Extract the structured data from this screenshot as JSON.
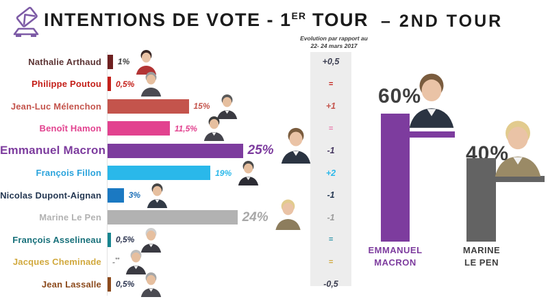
{
  "header": {
    "icon": "ballot-box-icon",
    "accent_color": "#7d5ba6",
    "title_prefix": "INTENTIONS DE VOTE - 1",
    "title_sup": "ER",
    "title_suffix": " TOUR",
    "second_title": "– 2ND  TOUR"
  },
  "evolution_note": {
    "line1": "Evolution par rapport au",
    "line2": "22- 24 mars 2017"
  },
  "chart_data": [
    {
      "type": "bar",
      "orientation": "horizontal",
      "title": "Intentions de vote - 1er tour",
      "unit": "%",
      "xlim": [
        0,
        25
      ],
      "categories": [
        "Nathalie Arthaud",
        "Philippe Poutou",
        "Jean-Luc Mélenchon",
        "Benoît Hamon",
        "Emmanuel Macron",
        "François Fillon",
        "Nicolas Dupont-Aignan",
        "Marine Le Pen",
        "François Asselineau",
        "Jacques Cheminade",
        "Jean Lassalle"
      ],
      "values": [
        1,
        0.5,
        15,
        11.5,
        25,
        19,
        3,
        24,
        0.5,
        0,
        0.5
      ],
      "value_labels": [
        "1%",
        "0,5%",
        "15%",
        "11,5%",
        "25%",
        "19%",
        "3%",
        "24%",
        "0,5%",
        "-**",
        "0,5%"
      ],
      "evolution_header": "Evolution par rapport au 22- 24 mars 2017",
      "evolution": [
        "+0,5",
        "=",
        "+1",
        "=",
        "-1",
        "+2",
        "-1",
        "-1",
        "=",
        "=",
        "-0,5"
      ],
      "bar_colors": [
        "#6e2020",
        "#c4201a",
        "#c4544c",
        "#e2428f",
        "#7d3c9e",
        "#2ab8ea",
        "#1b79c2",
        "#b2b2b2",
        "#17858f",
        "#d1a93e",
        "#8c4a1c"
      ],
      "name_colors": [
        "#5c3434",
        "#c4201a",
        "#c4544c",
        "#e2428f",
        "#7d3c9e",
        "#2aa3dc",
        "#243752",
        "#b2b2b2",
        "#17707a",
        "#d1a93e",
        "#8c4a1c"
      ],
      "value_colors": [
        "#3f3f3f",
        "#c4201a",
        "#c4544c",
        "#e2428f",
        "#7d3c9e",
        "#2ab8ea",
        "#1b6fb8",
        "#a8a8a8",
        "#2c3550",
        "#8a8a8a",
        "#2c3550"
      ],
      "evolution_colors": [
        "#3d3f52",
        "#c4201a",
        "#c4544c",
        "#e878ab",
        "#44355e",
        "#2ab8ea",
        "#243752",
        "#9a9a9a",
        "#2a93a8",
        "#d1a93e",
        "#3d3f52"
      ]
    },
    {
      "type": "bar",
      "orientation": "vertical",
      "title": "2nd tour",
      "unit": "%",
      "categories": [
        "Emmanuel Macron",
        "Marine Le Pen"
      ],
      "values": [
        60,
        40
      ],
      "value_labels": [
        "60%",
        "40%"
      ],
      "bar_colors": [
        "#7d3c9e",
        "#636363"
      ]
    }
  ],
  "second_round": {
    "left": {
      "value": "60%",
      "name_line1": "EMMANUEL",
      "name_line2": "MACRON",
      "color": "#7d3c9e"
    },
    "right": {
      "value": "40%",
      "name_line1": "MARINE",
      "name_line2": "LE PEN",
      "color": "#636363",
      "label_color": "#3f3f3f"
    }
  },
  "avatars": {
    "rows": [
      {
        "hair": "#3a2826",
        "skin": "#eac3a6",
        "top": "#b23434"
      },
      {
        "hair": "#9b9b9b",
        "skin": "#e6bf9f",
        "top": "#4b4b52"
      },
      {
        "hair": "#5a5a5a",
        "skin": "#e6bf9f",
        "top": "#3a3a42",
        "shirt": true
      },
      {
        "hair": "#3c3c3c",
        "skin": "#e6bf9f",
        "top": "#44444c",
        "shirt": true
      },
      {
        "hair": "#7a5c3e",
        "skin": "#eac3a6",
        "top": "#2b3442",
        "shirt": true
      },
      {
        "hair": "#4a4a4a",
        "skin": "#e6bf9f",
        "top": "#2c2c34",
        "shirt": true
      },
      {
        "hair": "#464646",
        "skin": "#e6bf9f",
        "top": "#323a46",
        "shirt": true
      },
      {
        "hair": "#e2cb8e",
        "skin": "#eac3a6",
        "top": "#8d7d5d"
      },
      {
        "hair": "#cfcfcf",
        "skin": "#e6bf9f",
        "top": "#3a3a42",
        "shirt": true
      },
      {
        "hair": "#bdbdbd",
        "skin": "#e6bf9f",
        "top": "#3a3a42",
        "shirt": true
      },
      {
        "hair": "#a7a7a7",
        "skin": "#e6bf9f",
        "top": "#4b4b52",
        "shirt": true
      }
    ],
    "macron_large": {
      "hair": "#7a5c3e",
      "skin": "#eac3a6",
      "top": "#2b3442",
      "shirt": true
    },
    "lepen_large": {
      "hair": "#e2cb8e",
      "skin": "#eac3a6",
      "top": "#9a8a66",
      "shirt": true
    }
  }
}
